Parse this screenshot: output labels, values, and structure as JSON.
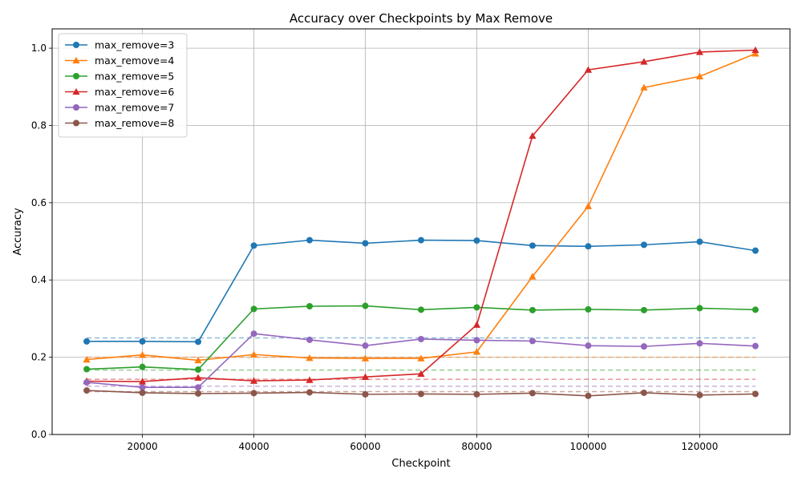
{
  "chart_data": {
    "type": "line",
    "title": "Accuracy over Checkpoints by Max Remove",
    "xlabel": "Checkpoint",
    "ylabel": "Accuracy",
    "xlim": [
      3800,
      136200
    ],
    "ylim": [
      0.0,
      1.05
    ],
    "xticks": [
      20000,
      40000,
      60000,
      80000,
      100000,
      120000
    ],
    "xtick_labels": [
      "20000",
      "40000",
      "60000",
      "80000",
      "100000",
      "120000"
    ],
    "yticks": [
      0.0,
      0.2,
      0.4,
      0.6,
      0.8,
      1.0
    ],
    "ytick_labels": [
      "0.0",
      "0.2",
      "0.4",
      "0.6",
      "0.8",
      "1.0"
    ],
    "grid": true,
    "legend_position": "top-left",
    "x": [
      10000,
      20000,
      30000,
      40000,
      50000,
      60000,
      70000,
      80000,
      90000,
      100000,
      110000,
      120000,
      130000
    ],
    "series": [
      {
        "name": "max_remove=3",
        "color": "#1f77b4",
        "marker": "circle",
        "baseline": 0.25,
        "values": [
          0.241,
          0.241,
          0.24,
          0.489,
          0.503,
          0.495,
          0.503,
          0.502,
          0.489,
          0.487,
          0.491,
          0.499,
          0.476
        ]
      },
      {
        "name": "max_remove=4",
        "color": "#ff7f0e",
        "marker": "triangle",
        "baseline": 0.2,
        "values": [
          0.194,
          0.206,
          0.192,
          0.207,
          0.198,
          0.197,
          0.197,
          0.214,
          0.409,
          0.591,
          0.898,
          0.927,
          0.986
        ]
      },
      {
        "name": "max_remove=5",
        "color": "#2ca02c",
        "marker": "circle",
        "baseline": 0.1667,
        "values": [
          0.169,
          0.175,
          0.168,
          0.325,
          0.332,
          0.333,
          0.323,
          0.329,
          0.322,
          0.324,
          0.322,
          0.327,
          0.323
        ]
      },
      {
        "name": "max_remove=6",
        "color": "#d62728",
        "marker": "triangle",
        "baseline": 0.1429,
        "values": [
          0.138,
          0.137,
          0.147,
          0.139,
          0.141,
          0.149,
          0.157,
          0.284,
          0.773,
          0.944,
          0.965,
          0.99,
          0.995
        ]
      },
      {
        "name": "max_remove=7",
        "color": "#9467bd",
        "marker": "circle",
        "baseline": 0.125,
        "values": [
          0.135,
          0.122,
          0.122,
          0.261,
          0.245,
          0.23,
          0.247,
          0.244,
          0.242,
          0.23,
          0.228,
          0.236,
          0.229
        ]
      },
      {
        "name": "max_remove=8",
        "color": "#8c564b",
        "marker": "circle",
        "baseline": 0.1111,
        "values": [
          0.114,
          0.108,
          0.106,
          0.107,
          0.109,
          0.104,
          0.105,
          0.104,
          0.107,
          0.1,
          0.108,
          0.102,
          0.105
        ]
      }
    ]
  }
}
